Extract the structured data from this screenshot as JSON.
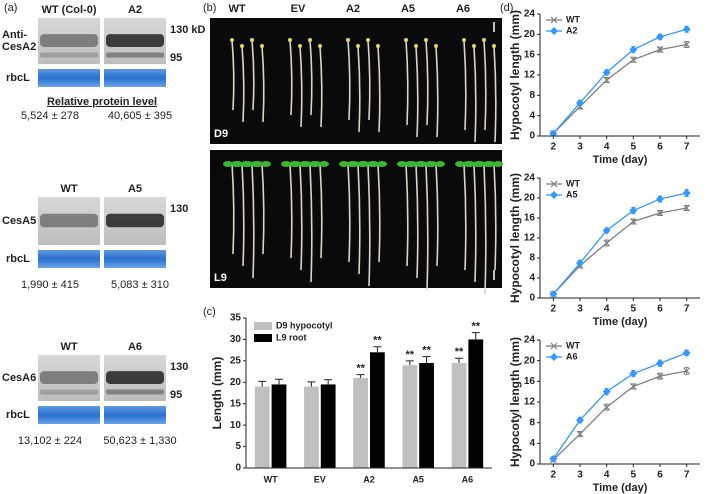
{
  "panel_a": {
    "label": "(a)",
    "blots": [
      {
        "lanes": [
          "WT (Col-0)",
          "A2"
        ],
        "antibody_lines": [
          "Anti-",
          "CesA2"
        ],
        "markers": [
          "130 kD",
          "95"
        ],
        "loading": "rbcL",
        "caption": "Relative protein level",
        "levels": [
          "5,524 ± 278",
          "40,605 ± 395"
        ]
      },
      {
        "lanes": [
          "WT",
          "A5"
        ],
        "antibody_lines": [
          "CesA5"
        ],
        "markers": [
          "130"
        ],
        "loading": "rbcL",
        "levels": [
          "1,990 ± 415",
          "5,083 ± 310"
        ]
      },
      {
        "lanes": [
          "WT",
          "A6"
        ],
        "antibody_lines": [
          "CesA6"
        ],
        "markers": [
          "130",
          "95"
        ],
        "loading": "rbcL",
        "levels": [
          "13,102 ± 224",
          "50,623 ± 1,330"
        ]
      }
    ]
  },
  "panel_b": {
    "label": "(b)",
    "lines": [
      "WT",
      "EV",
      "A2",
      "A5",
      "A6"
    ],
    "conditions": [
      "D9",
      "L9"
    ]
  },
  "panel_c_label": "(c)",
  "panel_d_label": "(d)",
  "chart_data": [
    {
      "type": "bar",
      "ylabel": "Length (mm)",
      "categories": [
        "WT",
        "EV",
        "A2",
        "A5",
        "A6"
      ],
      "ylim": [
        0,
        35
      ],
      "yticks": [
        0,
        5,
        10,
        15,
        20,
        25,
        30,
        35
      ],
      "legend": "upper left",
      "series": [
        {
          "name": "D9 hypocotyl",
          "color": "#c0c0c0",
          "values": [
            19,
            19,
            21,
            24,
            24.5
          ],
          "errors": [
            1.2,
            1.1,
            0.8,
            1,
            1.1
          ],
          "significance": [
            null,
            null,
            "**",
            "**",
            "**"
          ]
        },
        {
          "name": "L9 root",
          "color": "#000000",
          "values": [
            19.5,
            19.5,
            27,
            24.5,
            30
          ],
          "errors": [
            1.2,
            1.1,
            1.3,
            1.5,
            1.6
          ],
          "significance": [
            null,
            null,
            "**",
            "**",
            "**"
          ]
        }
      ]
    },
    {
      "type": "line",
      "xlabel": "Time (day)",
      "ylabel": "Hypocotyl length (mm)",
      "x": [
        2,
        3,
        4,
        5,
        6,
        7
      ],
      "xlim": [
        1.5,
        7.5
      ],
      "xticks": [
        2,
        3,
        4,
        5,
        6,
        7
      ],
      "ylim": [
        0,
        24
      ],
      "yticks": [
        0,
        4,
        8,
        12,
        16,
        20,
        24
      ],
      "legend": "upper left",
      "series": [
        {
          "name": "WT",
          "color": "#808080",
          "marker": "x",
          "values": [
            0.5,
            5.8,
            11,
            15,
            17,
            18
          ],
          "errors": [
            0.3,
            0.5,
            0.5,
            0.5,
            0.5,
            0.6
          ]
        },
        {
          "name": "A2",
          "color": "#3399ff",
          "marker": "diamond",
          "values": [
            0.5,
            6.5,
            12.5,
            17,
            19.5,
            21
          ],
          "errors": [
            0.3,
            0.5,
            0.5,
            0.6,
            0.5,
            0.6
          ]
        }
      ]
    },
    {
      "type": "line",
      "xlabel": "Time (day)",
      "ylabel": "Hypocotyl length (mm)",
      "x": [
        2,
        3,
        4,
        5,
        6,
        7
      ],
      "xlim": [
        1.5,
        7.5
      ],
      "xticks": [
        2,
        3,
        4,
        5,
        6,
        7
      ],
      "ylim": [
        0,
        24
      ],
      "yticks": [
        0,
        4,
        8,
        12,
        16,
        20,
        24
      ],
      "legend": "upper left",
      "series": [
        {
          "name": "WT",
          "color": "#808080",
          "marker": "x",
          "values": [
            0.8,
            6.5,
            11,
            15.3,
            17,
            18
          ],
          "errors": [
            0.3,
            0.5,
            0.6,
            0.5,
            0.5,
            0.5
          ]
        },
        {
          "name": "A5",
          "color": "#3399ff",
          "marker": "diamond",
          "values": [
            0.8,
            7,
            13.5,
            17.5,
            19.8,
            21
          ],
          "errors": [
            0.3,
            0.5,
            0.5,
            0.6,
            0.6,
            0.7
          ]
        }
      ]
    },
    {
      "type": "line",
      "xlabel": "Time (day)",
      "ylabel": "Hypocotyl length (mm)",
      "x": [
        2,
        3,
        4,
        5,
        6,
        7
      ],
      "xlim": [
        1.5,
        7.5
      ],
      "xticks": [
        2,
        3,
        4,
        5,
        6,
        7
      ],
      "ylim": [
        0,
        24
      ],
      "yticks": [
        0,
        4,
        8,
        12,
        16,
        20,
        24
      ],
      "legend": "upper left",
      "series": [
        {
          "name": "WT",
          "color": "#808080",
          "marker": "x",
          "values": [
            0.8,
            5.8,
            11,
            15,
            17,
            18
          ],
          "errors": [
            0.3,
            0.5,
            0.6,
            0.5,
            0.6,
            0.7
          ]
        },
        {
          "name": "A6",
          "color": "#3399ff",
          "marker": "diamond",
          "values": [
            1,
            8.5,
            14,
            17.5,
            19.5,
            21.5
          ],
          "errors": [
            0.4,
            0.5,
            0.6,
            0.6,
            0.6,
            0.5
          ]
        }
      ]
    }
  ]
}
